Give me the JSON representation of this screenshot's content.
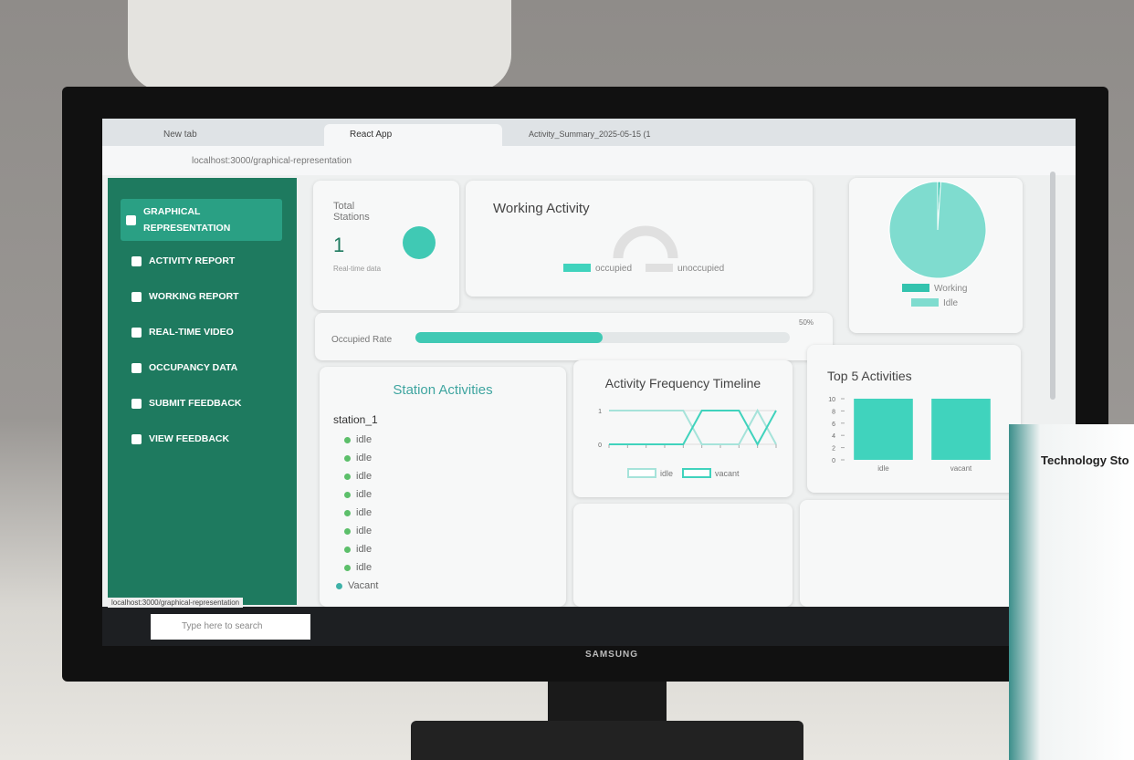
{
  "browser": {
    "tabs": [
      "New tab",
      "React App",
      "Activity_Summary_2025-05-15 (1"
    ],
    "url": "localhost:3000/graphical-representation",
    "status_url": "localhost:3000/graphical-representation"
  },
  "sidebar": {
    "items": [
      "GRAPHICAL REPRESENTATION",
      "ACTIVITY REPORT",
      "WORKING REPORT",
      "REAL-TIME VIDEO",
      "OCCUPANCY DATA",
      "SUBMIT FEEDBACK",
      "VIEW FEEDBACK"
    ]
  },
  "total_stations": {
    "label": "Total Stations",
    "value": 1,
    "note": "Real-time data"
  },
  "station_activities": {
    "title": "Station Activities",
    "station": "station_1",
    "statuses": [
      "idle",
      "idle",
      "idle",
      "idle",
      "idle",
      "idle",
      "idle",
      "idle",
      "Vacant"
    ]
  },
  "taskbar": {
    "search": "Type here to search"
  },
  "monitor": {
    "brand": "SAMSUNG"
  },
  "brochure": {
    "title": "Technology Sto"
  },
  "chart_data": [
    {
      "type": "gauge",
      "title": "Working Activity",
      "series": [
        {
          "name": "occupied",
          "color": "#40d3bd",
          "values": [
            0
          ]
        },
        {
          "name": "unoccupied",
          "color": "#e0e0e0",
          "values": [
            1
          ]
        }
      ]
    },
    {
      "type": "pie",
      "categories": [
        "Working",
        "Idle"
      ],
      "values": [
        1,
        99
      ],
      "colors": [
        "#33c3ae",
        "#7fdccf"
      ]
    },
    {
      "type": "progress",
      "label": "Occupied Rate",
      "value": 50,
      "value_label": "50%",
      "color": "#40c9b4"
    },
    {
      "type": "line",
      "title": "Activity Frequency Timeline",
      "categories": [
        null,
        null,
        null,
        null,
        null,
        null,
        null,
        null,
        null,
        null
      ],
      "series": [
        {
          "name": "idle",
          "color": "#a6e3da",
          "values": [
            1,
            1,
            1,
            1,
            1,
            0,
            0,
            0,
            1,
            0
          ]
        },
        {
          "name": "vacant",
          "color": "#40d3bd",
          "values": [
            0,
            0,
            0,
            0,
            0,
            1,
            1,
            1,
            0,
            1
          ]
        }
      ],
      "ylim": [
        0,
        1
      ],
      "yticks": [
        0,
        1
      ]
    },
    {
      "type": "bar",
      "title": "Top 5 Activities",
      "categories": [
        "idle",
        "vacant"
      ],
      "values": [
        10,
        10
      ],
      "color": "#40d3bd",
      "ylim": [
        0,
        10
      ],
      "yticks": [
        0,
        2,
        4,
        6,
        8,
        10
      ]
    }
  ]
}
